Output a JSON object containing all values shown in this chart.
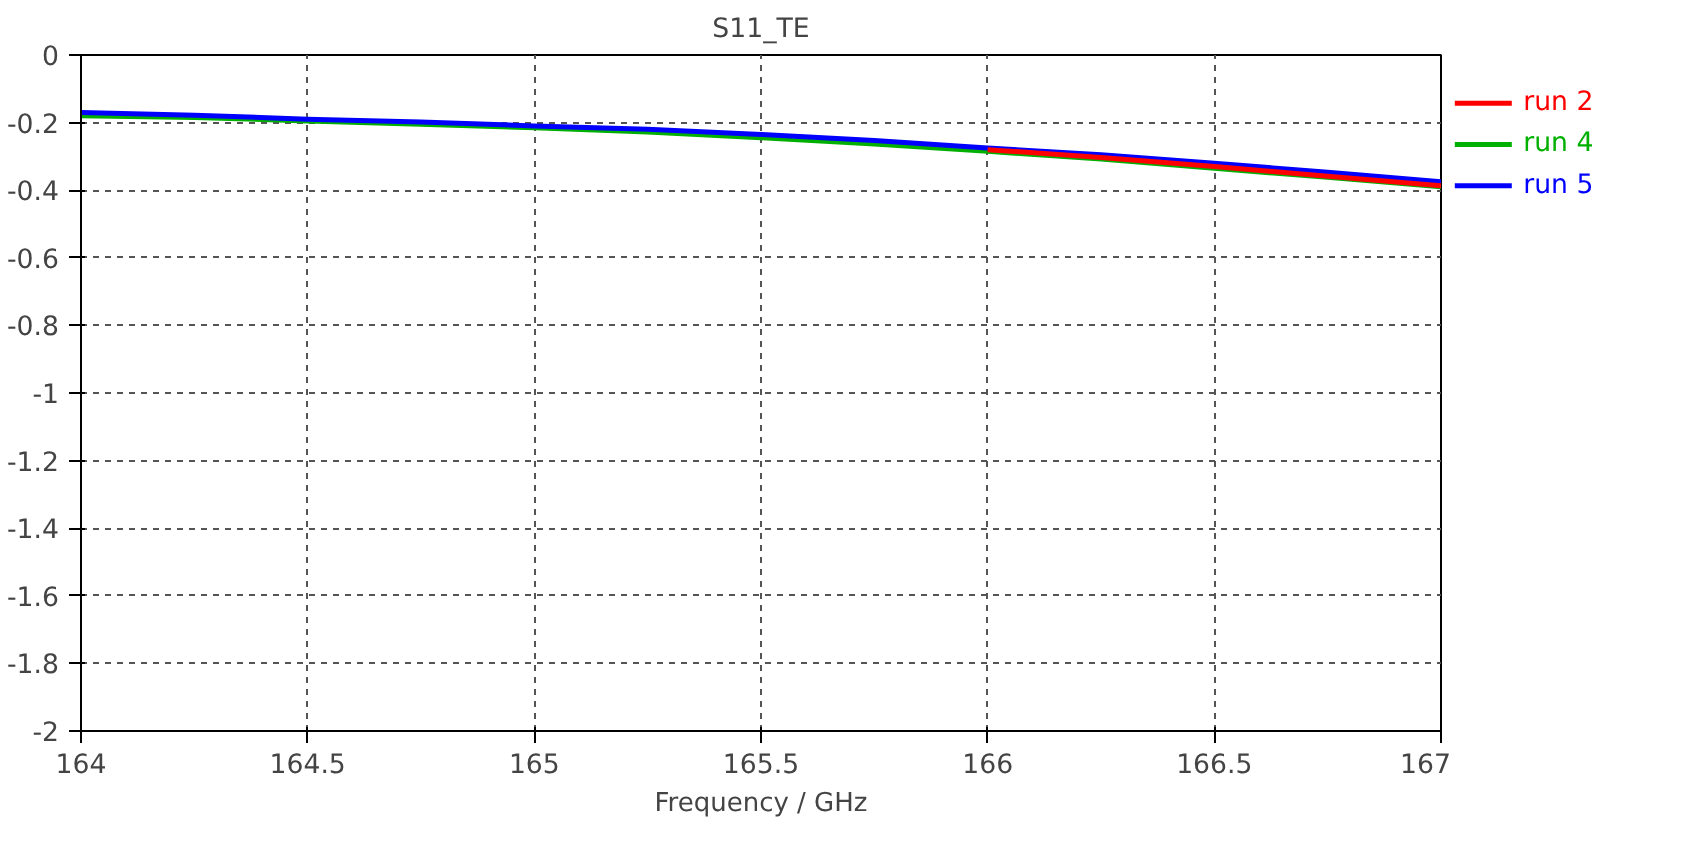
{
  "chart_data": {
    "type": "line",
    "title": "S11_TE",
    "xlabel": "Frequency / GHz",
    "x": [
      164,
      164.25,
      164.5,
      164.75,
      165,
      165.25,
      165.5,
      165.75,
      166,
      166.25,
      166.5,
      166.75,
      167
    ],
    "series": [
      {
        "name": "run 2",
        "color": "#ff0000",
        "values": [
          null,
          null,
          null,
          null,
          null,
          null,
          null,
          null,
          -0.28,
          -0.303,
          -0.33,
          -0.359,
          -0.387
        ]
      },
      {
        "name": "run 4",
        "color": "#00b000",
        "values": [
          -0.18,
          -0.185,
          -0.195,
          -0.205,
          -0.215,
          -0.228,
          -0.245,
          -0.263,
          -0.285,
          -0.308,
          -0.335,
          -0.362,
          -0.39
        ]
      },
      {
        "name": "run 5",
        "color": "#0000ff",
        "values": [
          -0.17,
          -0.178,
          -0.19,
          -0.198,
          -0.21,
          -0.22,
          -0.235,
          -0.253,
          -0.275,
          -0.295,
          -0.32,
          -0.347,
          -0.375
        ]
      }
    ],
    "xlim": [
      164,
      167
    ],
    "xticks": [
      164,
      164.5,
      165,
      165.5,
      166,
      166.5,
      167
    ],
    "ylim": [
      -2,
      0
    ],
    "yticks": [
      -2,
      -1.8,
      -1.6,
      -1.4,
      -1.2,
      -1,
      -0.8,
      -0.6,
      -0.4,
      -0.2,
      0
    ],
    "grid": true,
    "legend": "right",
    "line_style": "solid"
  }
}
